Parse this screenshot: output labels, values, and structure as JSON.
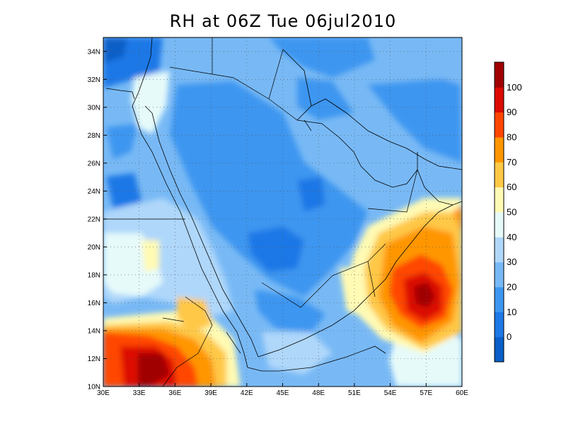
{
  "title": "RH at 06Z Tue 06jul2010",
  "map": {
    "variable": "RH",
    "lon_range": [
      30,
      60
    ],
    "lat_range": [
      10,
      35
    ],
    "lon_ticks": [
      "30E",
      "33E",
      "36E",
      "39E",
      "42E",
      "45E",
      "48E",
      "51E",
      "54E",
      "57E",
      "60E"
    ],
    "lat_ticks": [
      "10N",
      "12N",
      "14N",
      "16N",
      "18N",
      "20N",
      "22N",
      "24N",
      "26N",
      "28N",
      "30N",
      "32N",
      "34N"
    ],
    "grid_lines": "dotted"
  },
  "colorbar": {
    "labels": [
      "0",
      "10",
      "20",
      "30",
      "40",
      "50",
      "60",
      "70",
      "80",
      "90",
      "100"
    ],
    "colors": [
      "#0a5fc8",
      "#1e78e6",
      "#3c96f0",
      "#78b9f5",
      "#afd7fa",
      "#e6fafa",
      "#fffab4",
      "#ffc846",
      "#ff9600",
      "#ff4600",
      "#dc0a00",
      "#a00000"
    ]
  }
}
